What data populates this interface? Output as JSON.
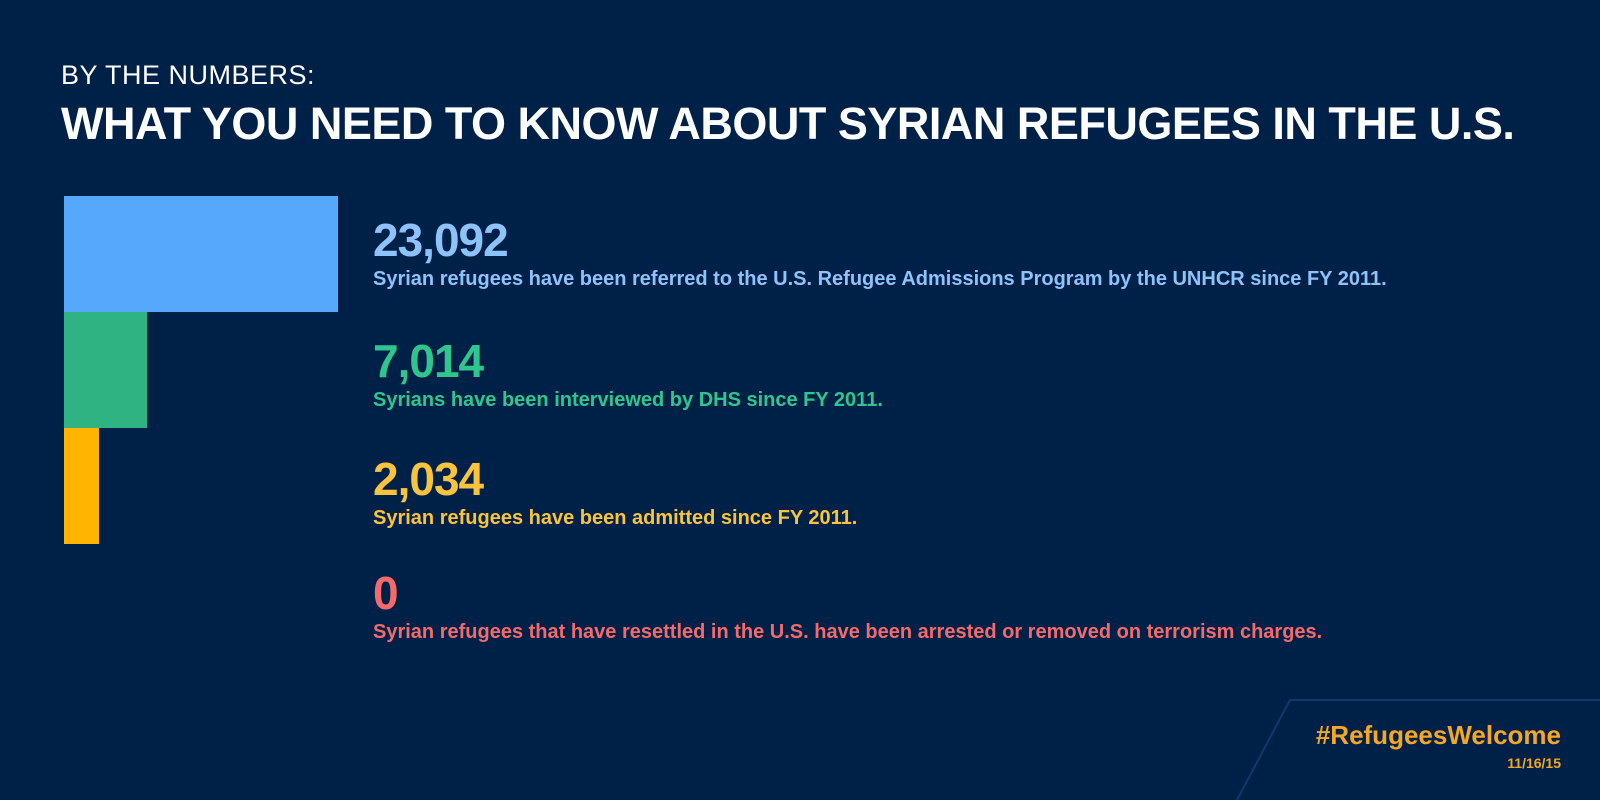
{
  "header": {
    "eyebrow": "BY THE NUMBERS:",
    "title": "WHAT YOU NEED TO KNOW ABOUT SYRIAN REFUGEES IN THE U.S."
  },
  "chart_data": {
    "type": "bar",
    "orientation": "horizontal",
    "series": [
      {
        "label": "23,092",
        "value": 23092,
        "description": "Syrian refugees have been referred to the U.S. Refugee Admissions Program by the UNHCR since FY 2011.",
        "bar_color": "#55a8fb",
        "text_color": "#8ec2fa"
      },
      {
        "label": "7,014",
        "value": 7014,
        "description": "Syrians have been interviewed by DHS since FY 2011.",
        "bar_color": "#2fb383",
        "text_color": "#2fc68e"
      },
      {
        "label": "2,034",
        "value": 2034,
        "description": "Syrian refugees have been admitted since FY 2011.",
        "bar_color": "#ffb500",
        "text_color": "#f9c43c"
      },
      {
        "label": "0",
        "value": 0,
        "description": "Syrian refugees that have resettled in the U.S. have been arrested or removed on terrorism charges.",
        "bar_color": "#f46a6a",
        "text_color": "#f46a6a"
      }
    ]
  },
  "footer": {
    "hashtag": "#RefugeesWelcome",
    "date": "11/16/15"
  },
  "colors": {
    "background": "#002147",
    "accent": "#f5a623"
  }
}
